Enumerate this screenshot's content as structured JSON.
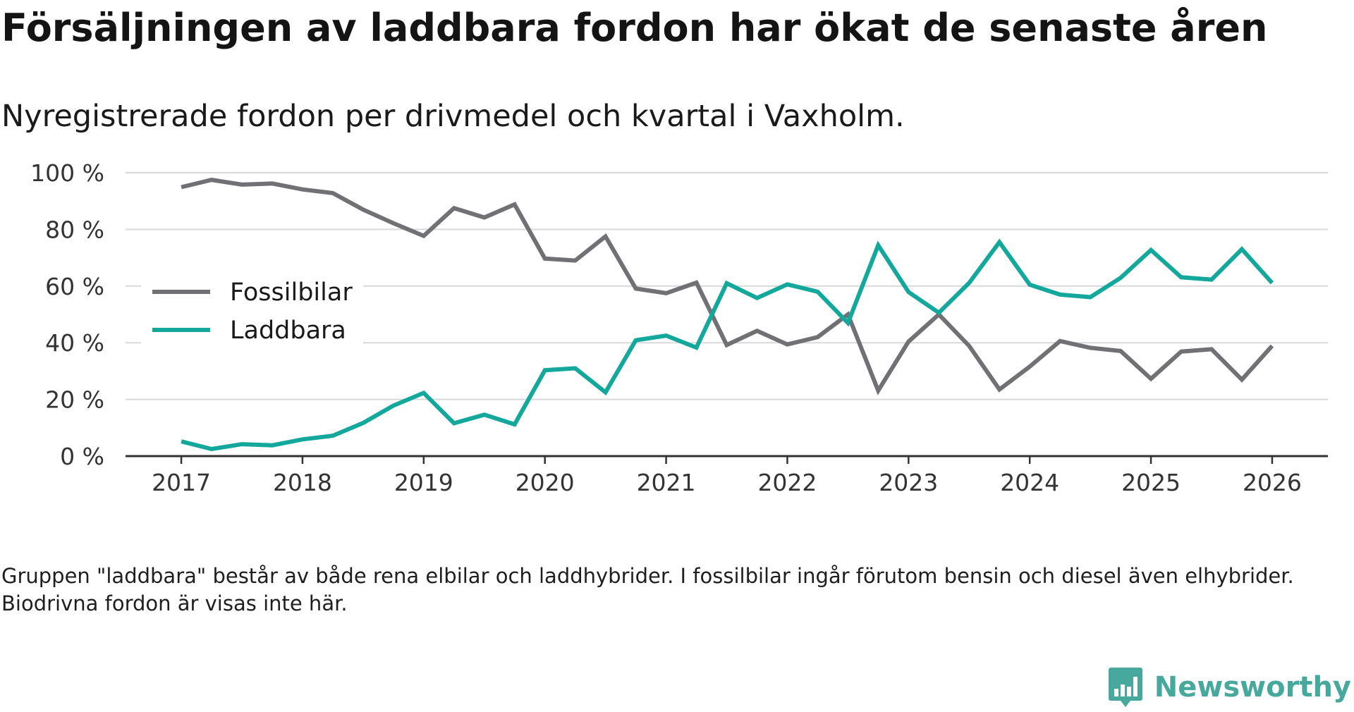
{
  "title": "Försäljningen av laddbara fordon har ökat de senaste åren",
  "subtitle": "Nyregistrerade fordon per drivmedel och kvartal i Vaxholm.",
  "footnote": "Gruppen \"laddbara\" består av både rena elbilar och laddhybrider. I fossilbilar ingår förutom bensin och diesel även elhybrider. Biodrivna fordon är visas inte här.",
  "brand": {
    "name": "Newsworthy",
    "color": "#47a89d",
    "logo_icon": "bar-chart-speech-bubble-icon"
  },
  "chart_data": {
    "type": "line",
    "title": "Försäljningen av laddbara fordon har ökat de senaste åren",
    "subtitle": "Nyregistrerade fordon per drivmedel och kvartal i Vaxholm.",
    "xlabel": "",
    "ylabel": "",
    "x_ticks": [
      "2017",
      "2018",
      "2019",
      "2020",
      "2021",
      "2022",
      "2023",
      "2024",
      "2025",
      "2026"
    ],
    "y_ticks": [
      0,
      20,
      40,
      60,
      80,
      100
    ],
    "y_tick_labels": [
      "0 %",
      "20 %",
      "40 %",
      "60 %",
      "80 %",
      "100 %"
    ],
    "ylim": [
      0,
      100
    ],
    "xlim": [
      2016.54,
      2026.46
    ],
    "legend_position": "left-middle",
    "grid": true,
    "x": [
      2017.0,
      2017.25,
      2017.5,
      2017.75,
      2018.0,
      2018.25,
      2018.5,
      2018.75,
      2019.0,
      2019.25,
      2019.5,
      2019.75,
      2020.0,
      2020.25,
      2020.5,
      2020.75,
      2021.0,
      2021.25,
      2021.5,
      2021.75,
      2022.0,
      2022.25,
      2022.5,
      2022.75,
      2023.0,
      2023.25,
      2023.5,
      2023.75,
      2024.0,
      2024.25,
      2024.5,
      2024.75,
      2025.0,
      2025.25,
      2025.5,
      2025.75,
      2026.0
    ],
    "series": [
      {
        "name": "Fossilbilar",
        "color": "#707075",
        "values": [
          94.9,
          97.5,
          95.8,
          96.2,
          94.1,
          92.8,
          87.0,
          82.2,
          77.7,
          87.5,
          84.2,
          88.8,
          69.7,
          69.0,
          77.5,
          59.1,
          57.5,
          61.2,
          39.2,
          44.2,
          39.4,
          42.0,
          50.0,
          23.1,
          40.4,
          50.0,
          38.9,
          23.5,
          31.6,
          40.6,
          38.2,
          37.1,
          27.3,
          36.9,
          37.7,
          27.0,
          38.9
        ]
      },
      {
        "name": "Laddbara",
        "color": "#13a89b",
        "values": [
          5.2,
          2.5,
          4.2,
          3.8,
          5.9,
          7.2,
          11.7,
          17.8,
          22.3,
          11.6,
          14.6,
          11.2,
          30.3,
          31.0,
          22.5,
          40.9,
          42.5,
          38.3,
          61.0,
          55.8,
          60.6,
          58.0,
          47.0,
          74.4,
          57.9,
          50.6,
          61.1,
          75.5,
          60.5,
          57.0,
          56.1,
          62.9,
          72.7,
          63.1,
          62.3,
          73.0,
          61.1
        ]
      }
    ]
  }
}
